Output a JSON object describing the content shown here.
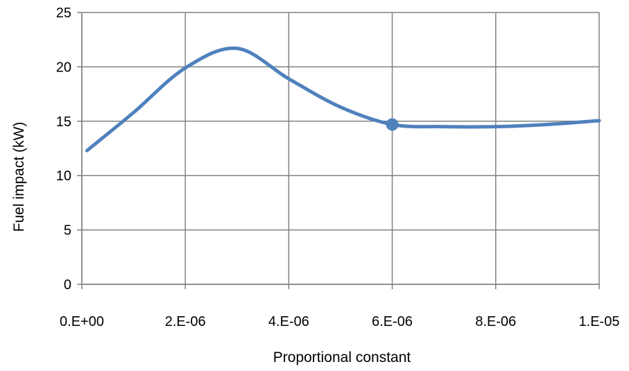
{
  "chart_data": {
    "type": "line",
    "title": "",
    "xlabel": "Proportional constant",
    "ylabel": "Fuel impact (kW)",
    "xlim": [
      0,
      1e-05
    ],
    "ylim": [
      0,
      25
    ],
    "grid": true,
    "legend": "none",
    "x_ticks": [
      {
        "value": 0,
        "label": "0.E+00"
      },
      {
        "value": 2e-06,
        "label": "2.E-06"
      },
      {
        "value": 4e-06,
        "label": "4.E-06"
      },
      {
        "value": 6e-06,
        "label": "6.E-06"
      },
      {
        "value": 8e-06,
        "label": "8.E-06"
      },
      {
        "value": 1e-05,
        "label": "1.E-05"
      }
    ],
    "y_ticks": [
      {
        "value": 0,
        "label": "0"
      },
      {
        "value": 5,
        "label": "5"
      },
      {
        "value": 10,
        "label": "10"
      },
      {
        "value": 15,
        "label": "15"
      },
      {
        "value": 20,
        "label": "20"
      },
      {
        "value": 25,
        "label": "25"
      }
    ],
    "series": [
      {
        "color": "#4f81bd",
        "x": [
          1e-07,
          1e-06,
          2e-06,
          3e-06,
          4e-06,
          5e-06,
          6e-06,
          7e-06,
          8e-06,
          9e-06,
          1e-05
        ],
        "y": [
          12.3,
          15.8,
          19.9,
          21.7,
          18.9,
          16.3,
          14.7,
          14.5,
          14.5,
          14.7,
          15.05
        ]
      }
    ],
    "highlight_point": {
      "x": 6e-06,
      "y": 14.7,
      "color": "#4f81bd"
    }
  }
}
